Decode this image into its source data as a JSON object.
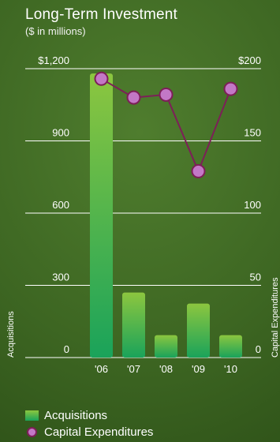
{
  "title": "Long-Term Investment",
  "subtitle": "($ in millions)",
  "chart_data": {
    "type": "bar",
    "categories": [
      "'06",
      "'07",
      "'08",
      "'09",
      "'10"
    ],
    "series": [
      {
        "name": "Acquisitions",
        "type": "bar",
        "axis": "left",
        "values": [
          1180,
          270,
          93,
          224,
          93
        ],
        "color_top": "#8cc63f",
        "color_bottom": "#1aa35a"
      },
      {
        "name": "Capital Expenditures",
        "type": "line",
        "axis": "right",
        "values": [
          193,
          180,
          182,
          129,
          186
        ],
        "line_color": "#7d1f58",
        "marker_fill": "#c378c6"
      }
    ],
    "y_left": {
      "label": "Acquisitions",
      "range": [
        0,
        1200
      ],
      "ticks": [
        0,
        300,
        600,
        900,
        1200
      ],
      "tick_labels": [
        "0",
        "300",
        "600",
        "900",
        "$1,200"
      ]
    },
    "y_right": {
      "label": "Capital Expenditures",
      "range": [
        0,
        200
      ],
      "ticks": [
        0,
        50,
        100,
        150,
        200
      ],
      "tick_labels": [
        "0",
        "50",
        "100",
        "150",
        "$200"
      ]
    },
    "grid": true,
    "legend_position": "bottom-left"
  },
  "legend": {
    "acquisitions": "Acquisitions",
    "capex": "Capital Expenditures"
  }
}
